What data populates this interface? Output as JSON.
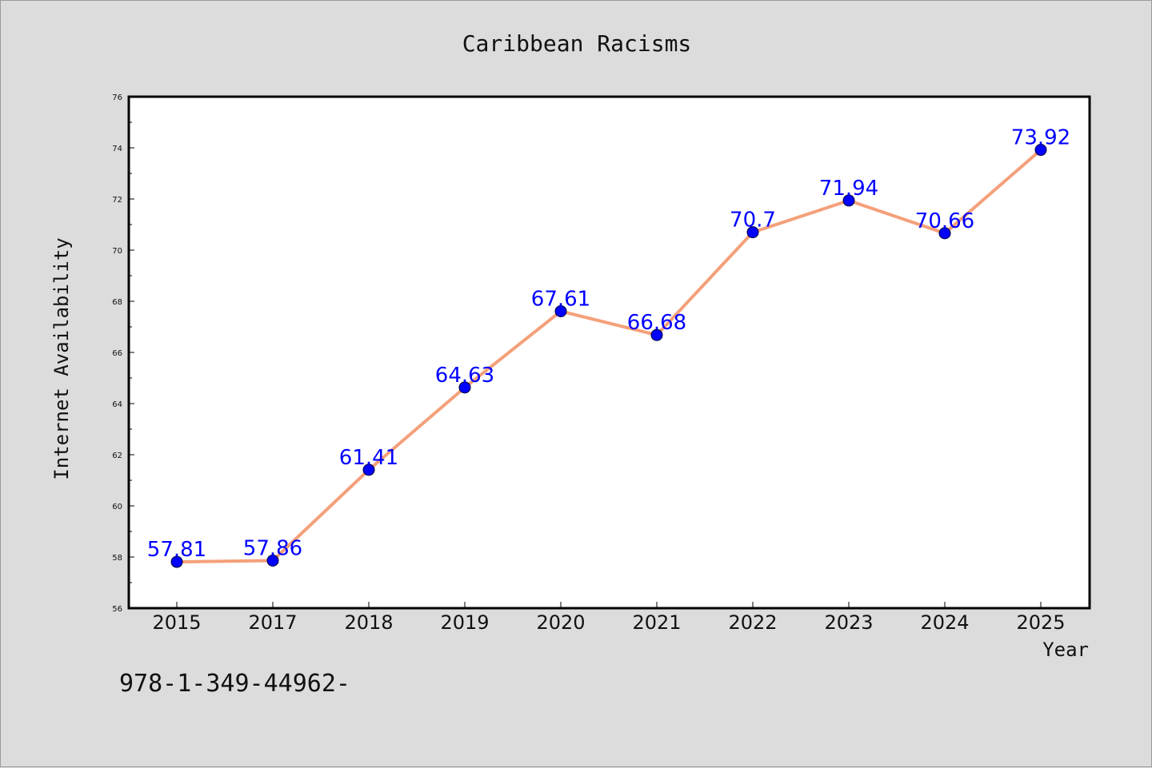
{
  "chart_data": {
    "type": "line",
    "title": "Caribbean Racisms",
    "xlabel": "Year",
    "ylabel": "Internet Availability",
    "categories": [
      "2015",
      "2017",
      "2018",
      "2019",
      "2020",
      "2021",
      "2022",
      "2023",
      "2024",
      "2025"
    ],
    "series": [
      {
        "values": [
          57.81,
          57.86,
          61.41,
          64.63,
          67.61,
          66.68,
          70.7,
          71.94,
          70.66,
          73.92
        ],
        "labels": [
          "57.81",
          "57.86",
          "61.41",
          "64.63",
          "67.61",
          "66.68",
          "70.7",
          "71.94",
          "70.66",
          "73.92"
        ],
        "line_color": "#f4a07a",
        "marker_color": "#0000ff"
      }
    ],
    "ylim": [
      56,
      76
    ],
    "yticks": [
      56,
      58,
      60,
      62,
      64,
      66,
      68,
      70,
      72,
      74,
      76
    ],
    "ytick_labels": [
      "56",
      "58",
      "60",
      "62",
      "64",
      "66",
      "68",
      "70",
      "72",
      "74",
      "76"
    ],
    "grid": false,
    "legend": "none"
  },
  "footnote": "978-1-349-44962-"
}
